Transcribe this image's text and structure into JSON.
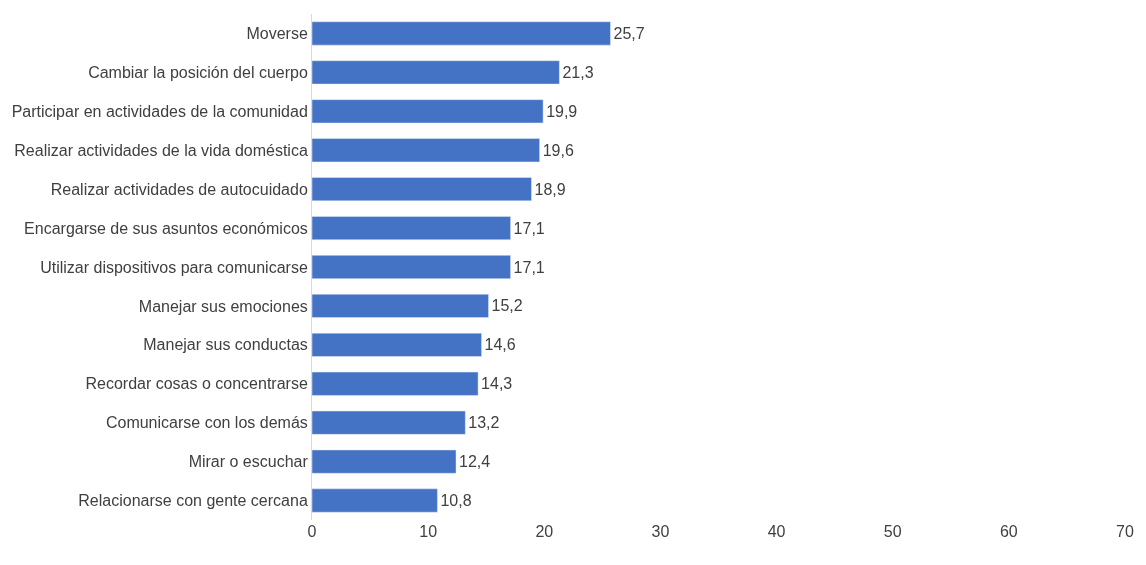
{
  "chart_data": {
    "type": "bar",
    "orientation": "horizontal",
    "categories": [
      "Moverse",
      "Cambiar la posición del cuerpo",
      "Participar en actividades de la comunidad",
      "Realizar actividades de la vida doméstica",
      "Realizar actividades de autocuidado",
      "Encargarse de sus asuntos económicos",
      "Utilizar dispositivos para comunicarse",
      "Manejar sus emociones",
      "Manejar sus conductas",
      "Recordar cosas o concentrarse",
      "Comunicarse con los demás",
      "Mirar o escuchar",
      "Relacionarse con gente cercana"
    ],
    "values": [
      25.7,
      21.3,
      19.9,
      19.6,
      18.9,
      17.1,
      17.1,
      15.2,
      14.6,
      14.3,
      13.2,
      12.4,
      10.8
    ],
    "value_labels": [
      "25,7",
      "21,3",
      "19,9",
      "19,6",
      "18,9",
      "17,1",
      "17,1",
      "15,2",
      "14,6",
      "14,3",
      "13,2",
      "12,4",
      "10,8"
    ],
    "color": "#4472c4",
    "xlim": [
      0,
      70
    ],
    "xticks": [
      0,
      10,
      20,
      30,
      40,
      50,
      60,
      70
    ]
  }
}
